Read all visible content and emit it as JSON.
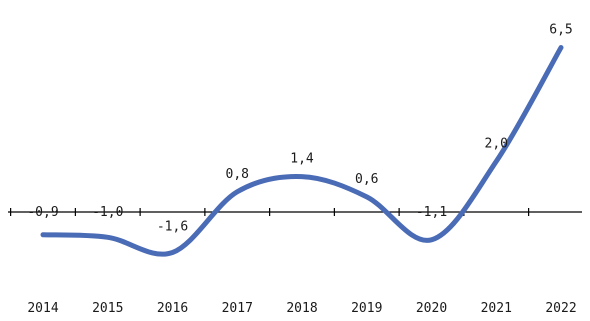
{
  "chart_data": {
    "type": "line",
    "title": "",
    "xlabel": "",
    "ylabel": "",
    "categories": [
      "2014",
      "2015",
      "2016",
      "2017",
      "2018",
      "2019",
      "2020",
      "2021",
      "2022"
    ],
    "series": [
      {
        "values": [
          -0.9,
          -1.0,
          -1.6,
          0.8,
          1.4,
          0.6,
          -1.1,
          2.0,
          6.5
        ],
        "labels": [
          "-0,9",
          "-1,0",
          "-1,6",
          "0,8",
          "1,4",
          "0,6",
          "-1,1",
          "2,0",
          "6,5"
        ],
        "color": "#4a6bb5"
      }
    ],
    "ylim": [
      -2.5,
      7.5
    ],
    "grid": false,
    "legend": "none",
    "axis_color": "#000000"
  }
}
